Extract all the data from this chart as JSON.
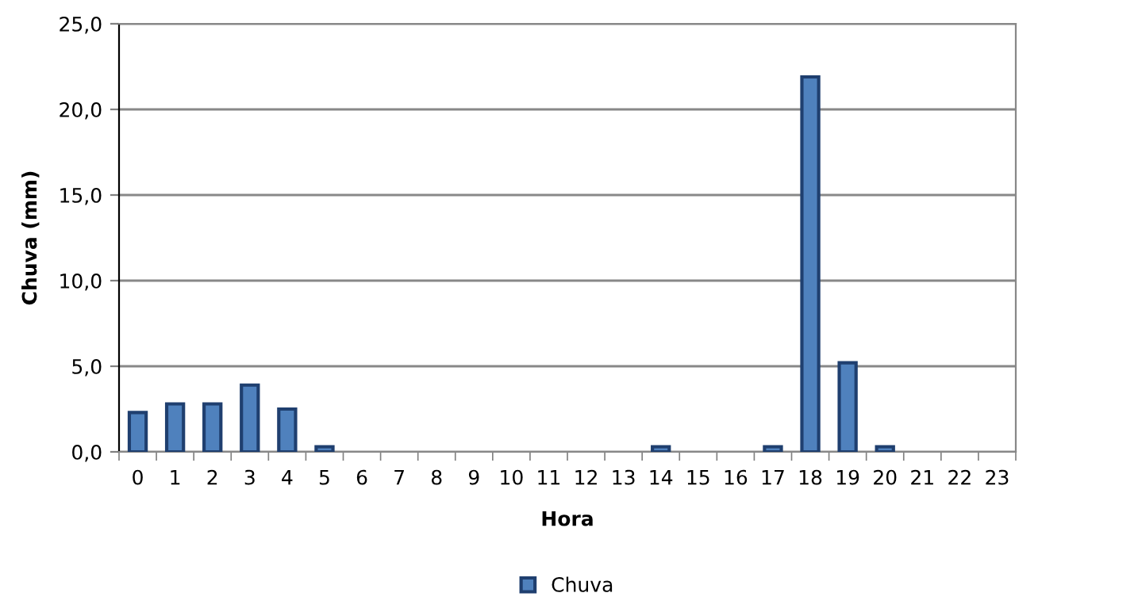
{
  "chart_data": {
    "type": "bar",
    "xlabel": "Hora",
    "ylabel": "Chuva (mm)",
    "categories": [
      "0",
      "1",
      "2",
      "3",
      "4",
      "5",
      "6",
      "7",
      "8",
      "9",
      "10",
      "11",
      "12",
      "13",
      "14",
      "15",
      "16",
      "17",
      "18",
      "19",
      "20",
      "21",
      "22",
      "23"
    ],
    "series": [
      {
        "name": "Chuva",
        "color": "#4f81bd",
        "values": [
          2.3,
          2.8,
          2.8,
          3.9,
          2.5,
          0.3,
          0,
          0,
          0,
          0,
          0,
          0,
          0,
          0,
          0.3,
          0,
          0,
          0.3,
          21.9,
          5.2,
          0.3,
          0,
          0,
          0
        ]
      }
    ],
    "ylim": [
      0,
      25
    ],
    "yticks": [
      {
        "value": 0,
        "label": "0,0"
      },
      {
        "value": 5,
        "label": "5,0"
      },
      {
        "value": 10,
        "label": "10,0"
      },
      {
        "value": 15,
        "label": "15,0"
      },
      {
        "value": 20,
        "label": "20,0"
      },
      {
        "value": 25,
        "label": "25,0"
      }
    ],
    "grid": "y",
    "legend": "bottom"
  }
}
